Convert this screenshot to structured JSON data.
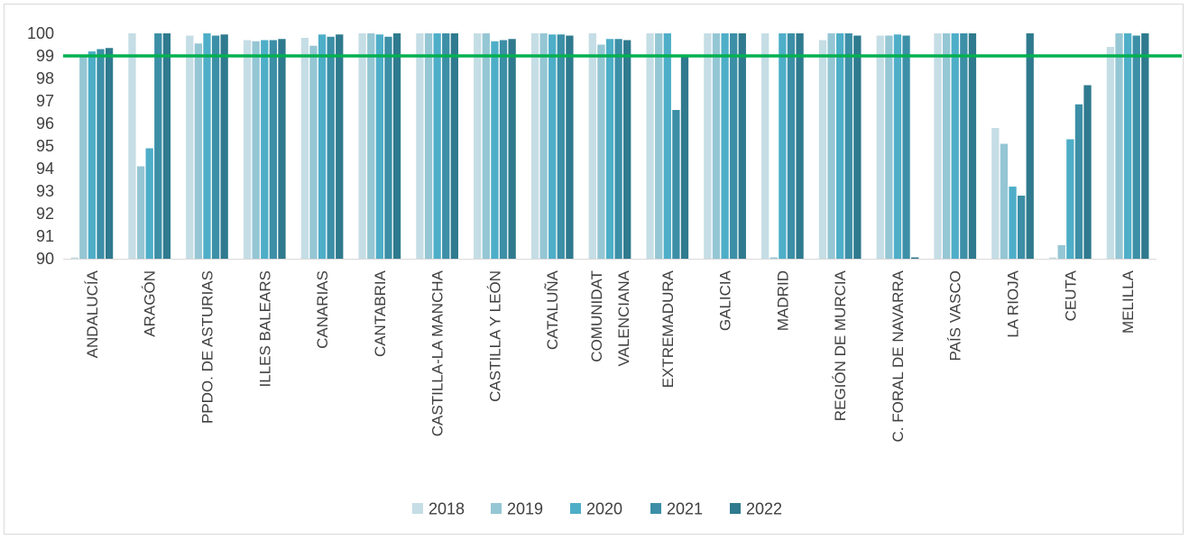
{
  "chart_data": {
    "type": "bar",
    "title": "",
    "xlabel": "",
    "ylabel": "",
    "ylim": [
      90,
      100
    ],
    "yticks": [
      "90",
      "91",
      "92",
      "93",
      "94",
      "95",
      "96",
      "97",
      "98",
      "99",
      "100"
    ],
    "grid": false,
    "legend_position": "bottom",
    "reference_line": {
      "value": 99,
      "color": "#00b050"
    },
    "categories": [
      [
        "ANDALUCÍA"
      ],
      [
        "ARAGÓN"
      ],
      [
        "PPDO. DE ASTURIAS"
      ],
      [
        "ILLES BALEARS"
      ],
      [
        "CANARIAS"
      ],
      [
        "CANTABRIA"
      ],
      [
        "CASTILLA-LA MANCHA"
      ],
      [
        "CASTILLA Y LEÓN"
      ],
      [
        "CATALUÑA"
      ],
      [
        "COMUNIDAT",
        "VALENCIANA"
      ],
      [
        "EXTREMADURA"
      ],
      [
        "GALICIA"
      ],
      [
        "MADRID"
      ],
      [
        "REGIÓN DE MURCIA"
      ],
      [
        "C. FORAL DE NAVARRA"
      ],
      [
        "PAÍS VASCO"
      ],
      [
        "LA RIOJA"
      ],
      [
        "CEUTA"
      ],
      [
        "MELILLA"
      ]
    ],
    "series": [
      {
        "name": "2018",
        "color": "#c5dde5",
        "values": [
          89.9,
          100,
          99.9,
          99.7,
          99.8,
          100,
          100,
          100,
          100,
          100,
          100,
          100,
          100,
          99.7,
          99.9,
          100,
          95.8,
          89.9,
          99.4
        ]
      },
      {
        "name": "2019",
        "color": "#95c6d4",
        "values": [
          99.0,
          94.1,
          99.55,
          99.65,
          99.45,
          100,
          100,
          100,
          100,
          99.5,
          100,
          100,
          90,
          100,
          99.9,
          100,
          95.1,
          90.6,
          100
        ]
      },
      {
        "name": "2020",
        "color": "#4eaec8",
        "values": [
          99.2,
          94.9,
          100,
          99.7,
          99.95,
          99.95,
          100,
          99.65,
          99.95,
          99.75,
          100,
          100,
          100,
          100,
          99.95,
          100,
          93.2,
          95.3,
          100
        ]
      },
      {
        "name": "2021",
        "color": "#3c8fa6",
        "values": [
          99.3,
          100,
          99.9,
          99.7,
          99.85,
          99.85,
          100,
          99.7,
          99.95,
          99.75,
          96.6,
          100,
          100,
          100,
          99.9,
          100,
          92.8,
          96.85,
          99.9
        ]
      },
      {
        "name": "2022",
        "color": "#2f7a8e",
        "values": [
          99.35,
          100,
          99.95,
          99.75,
          99.95,
          100,
          100,
          99.75,
          99.9,
          99.7,
          99.0,
          100,
          100,
          99.9,
          89.9,
          100,
          100,
          97.7,
          100
        ]
      }
    ]
  }
}
